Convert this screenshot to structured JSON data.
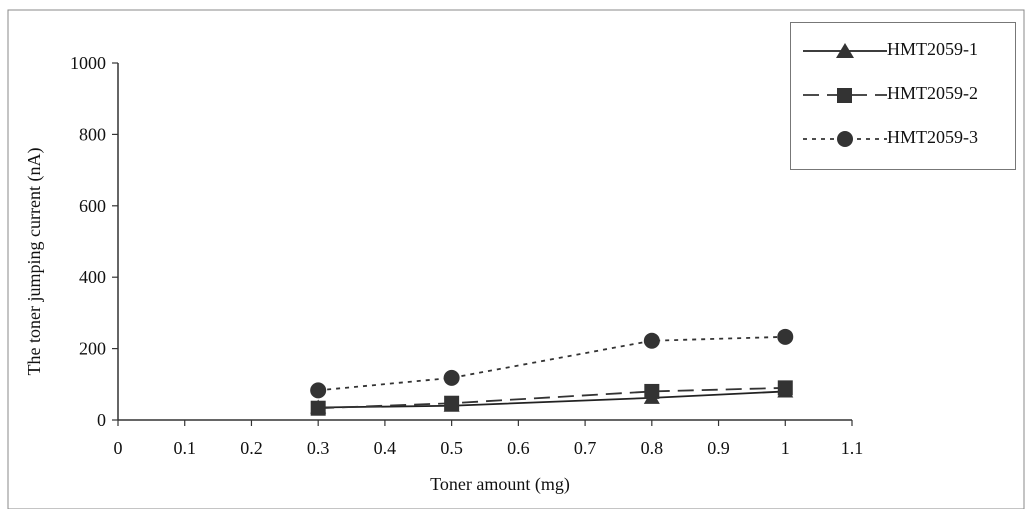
{
  "chart_data": {
    "type": "line",
    "xlabel": "Toner amount (mg)",
    "ylabel": "The toner jumping current (nA)",
    "xlim": [
      0,
      1.1
    ],
    "ylim": [
      0,
      1000
    ],
    "x_ticks": [
      "0",
      "0.1",
      "0.2",
      "0.3",
      "0.4",
      "0.5",
      "0.6",
      "0.7",
      "0.8",
      "0.9",
      "1",
      "1.1"
    ],
    "y_ticks": [
      "0",
      "200",
      "400",
      "600",
      "800",
      "1000"
    ],
    "grid": false,
    "legend_position": "top-right",
    "x": [
      0.3,
      0.5,
      0.8,
      1.0
    ],
    "series": [
      {
        "name": "HMT2059-1",
        "values": [
          35,
          40,
          62,
          80
        ],
        "marker": "triangle",
        "line": "solid",
        "color": "#222222"
      },
      {
        "name": "HMT2059-2",
        "values": [
          33,
          47,
          80,
          90
        ],
        "marker": "square",
        "line": "dashed",
        "color": "#333333"
      },
      {
        "name": "HMT2059-3",
        "values": [
          83,
          118,
          222,
          233
        ],
        "marker": "circle",
        "line": "dotted",
        "color": "#333333"
      }
    ]
  }
}
